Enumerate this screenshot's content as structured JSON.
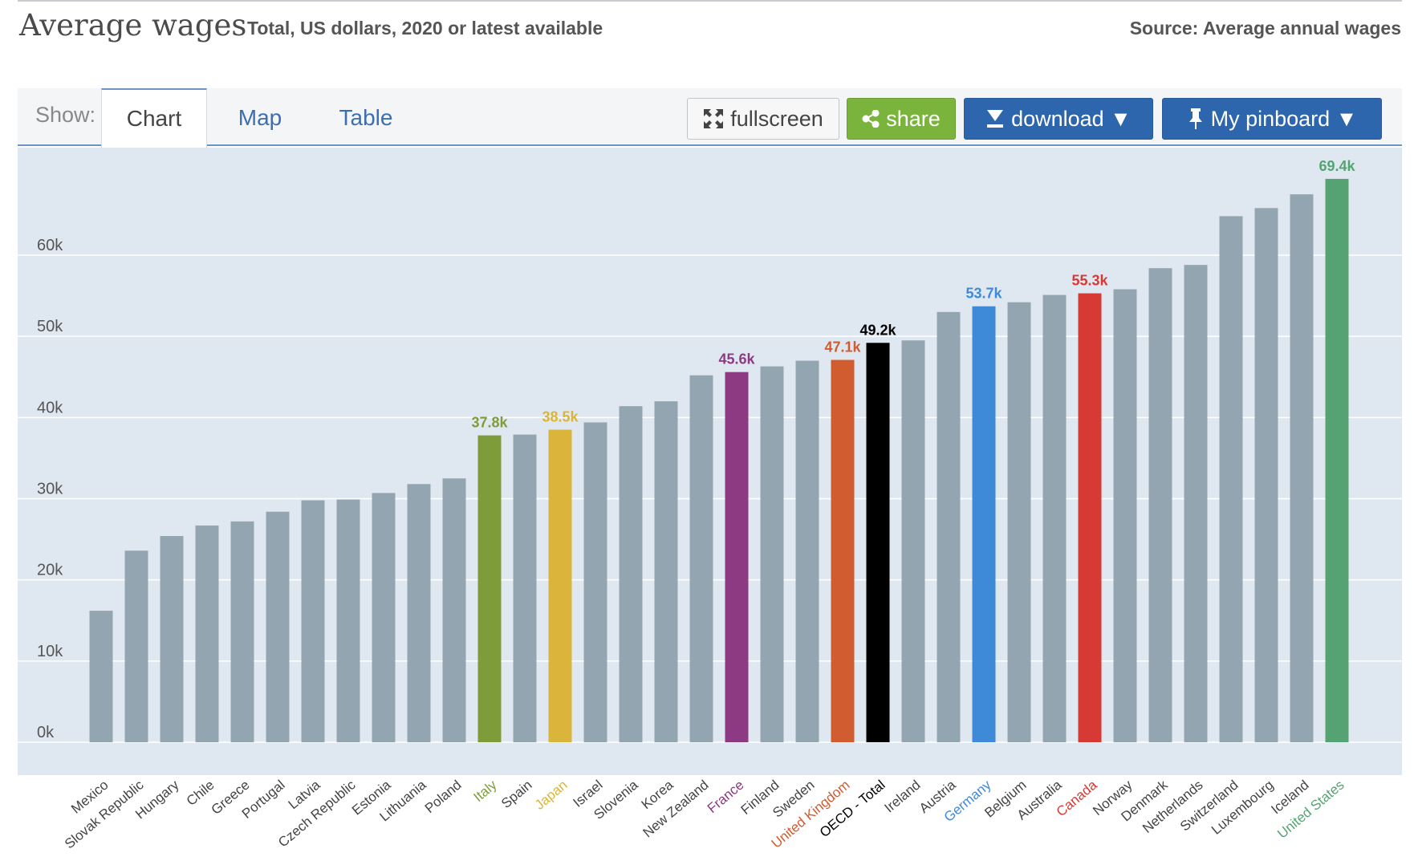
{
  "header": {
    "title": "Average wages",
    "subtitle": "Total, US dollars, 2020 or latest available",
    "source": "Source: Average annual wages"
  },
  "toolbar": {
    "show_label": "Show:",
    "tabs": [
      {
        "label": "Chart",
        "active": true
      },
      {
        "label": "Map",
        "active": false
      },
      {
        "label": "Table",
        "active": false
      }
    ],
    "fullscreen_label": "fullscreen",
    "share_label": "share",
    "download_label": "download ▼",
    "pinboard_label": "My pinboard ▼"
  },
  "colors": {
    "default_bar": "#94a5b2",
    "plot_background": "#dfe8f0",
    "gridline": "#ffffff",
    "Italy": "#7e9d3a",
    "Japan": "#dbb43c",
    "France": "#8e3a82",
    "United Kingdom": "#d05c30",
    "OECD - Total": "#000000",
    "Germany": "#3f8ad8",
    "Canada": "#d73a34",
    "United States": "#55a373"
  },
  "chart_data": {
    "type": "bar",
    "title": "Average wages",
    "subtitle": "Total, US dollars, 2020 or latest available",
    "xlabel": "",
    "ylabel": "",
    "ylim": [
      0,
      73000
    ],
    "yticks": [
      0,
      10000,
      20000,
      30000,
      40000,
      50000,
      60000
    ],
    "ytick_labels": [
      "0k",
      "10k",
      "20k",
      "30k",
      "40k",
      "50k",
      "60k"
    ],
    "grid": true,
    "legend": "none",
    "categories": [
      "Mexico",
      "Slovak Republic",
      "Hungary",
      "Chile",
      "Greece",
      "Portugal",
      "Latvia",
      "Czech Republic",
      "Estonia",
      "Lithuania",
      "Poland",
      "Italy",
      "Spain",
      "Japan",
      "Israel",
      "Slovenia",
      "Korea",
      "New Zealand",
      "France",
      "Finland",
      "Sweden",
      "United Kingdom",
      "OECD - Total",
      "Ireland",
      "Austria",
      "Germany",
      "Belgium",
      "Australia",
      "Canada",
      "Norway",
      "Denmark",
      "Netherlands",
      "Switzerland",
      "Luxembourg",
      "Iceland",
      "United States"
    ],
    "values": [
      16200,
      23600,
      25400,
      26700,
      27200,
      28400,
      29800,
      29900,
      30700,
      31800,
      32500,
      37800,
      37900,
      38500,
      39400,
      41400,
      42000,
      45200,
      45600,
      46300,
      47000,
      47100,
      49200,
      49500,
      53000,
      53700,
      54200,
      55100,
      55300,
      55800,
      58400,
      58800,
      64800,
      65800,
      67500,
      69400
    ],
    "value_labels": [
      {
        "category": "Italy",
        "label": "37.8k"
      },
      {
        "category": "Japan",
        "label": "38.5k"
      },
      {
        "category": "France",
        "label": "45.6k"
      },
      {
        "category": "United Kingdom",
        "label": "47.1k"
      },
      {
        "category": "OECD - Total",
        "label": "49.2k"
      },
      {
        "category": "Germany",
        "label": "53.7k"
      },
      {
        "category": "Canada",
        "label": "55.3k"
      },
      {
        "category": "United States",
        "label": "69.4k"
      }
    ]
  }
}
